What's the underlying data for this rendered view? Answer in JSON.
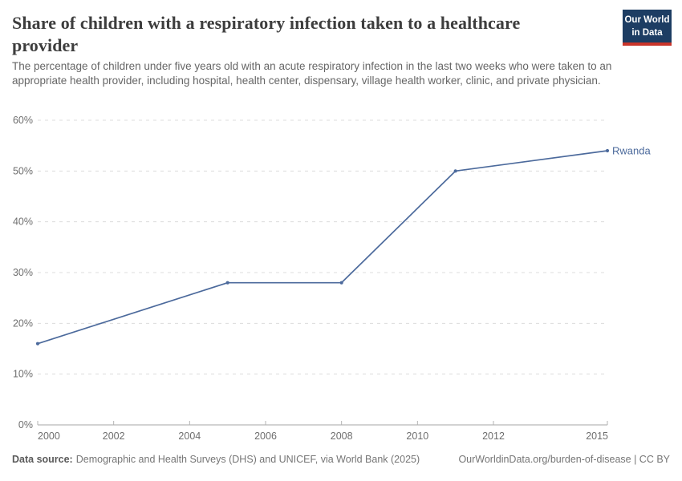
{
  "header": {
    "title": "Share of children with a respiratory infection taken to a healthcare provider",
    "subtitle": "The percentage of children under five years old with an acute respiratory infection in the last two weeks who were taken to an appropriate health provider, including hospital, health center, dispensary, village health worker, clinic, and private physician.",
    "logo": {
      "line1": "Our World",
      "line2": "in Data",
      "bg_color": "#1d3d63",
      "bar_color": "#c9342a"
    }
  },
  "chart_data": {
    "type": "line",
    "title": "Share of children with a respiratory infection taken to a healthcare provider",
    "series": [
      {
        "name": "Rwanda",
        "x": [
          2000,
          2005,
          2008,
          2011,
          2015
        ],
        "values": [
          16,
          28,
          28,
          50,
          54
        ]
      }
    ],
    "xlim": [
      2000,
      2015
    ],
    "ylim": [
      0,
      60
    ],
    "x_ticks": [
      2000,
      2002,
      2004,
      2006,
      2008,
      2010,
      2012,
      2015
    ],
    "x_tick_labels": [
      "2000",
      "2002",
      "2004",
      "2006",
      "2008",
      "2010",
      "2012",
      "2015"
    ],
    "y_ticks": [
      0,
      10,
      20,
      30,
      40,
      50,
      60
    ],
    "y_tick_labels": [
      "0%",
      "10%",
      "20%",
      "30%",
      "40%",
      "50%",
      "60%"
    ],
    "grid": "horizontal dashed",
    "legend_position": "end-of-line label",
    "line_color": "#4c6a9c",
    "gridline_color": "#dcdcdc",
    "axis_color": "#a5a5a5",
    "tick_text_color": "#6e6e6e"
  },
  "footer": {
    "source_label": "Data source:",
    "source_text": "Demographic and Health Surveys (DHS) and UNICEF, via World Bank (2025)",
    "rights": "OurWorldinData.org/burden-of-disease | CC BY"
  }
}
